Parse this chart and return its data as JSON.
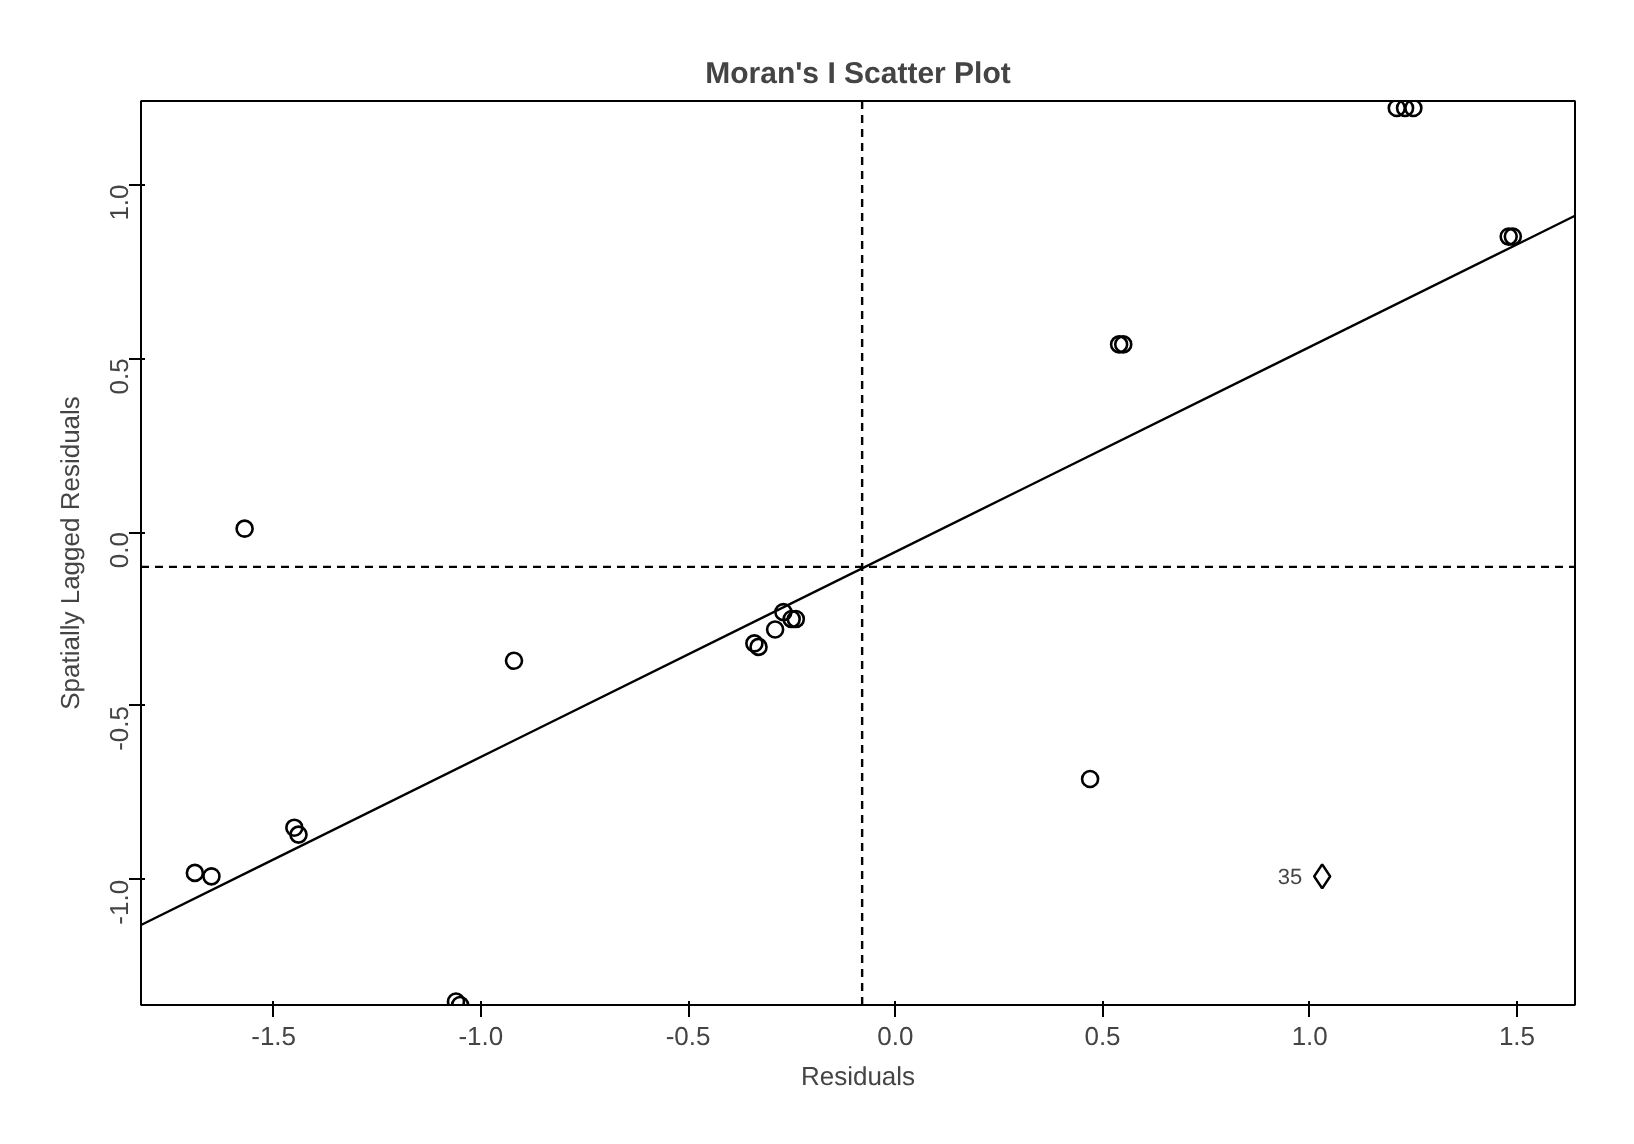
{
  "chart_data": {
    "type": "scatter",
    "title": "Moran's I Scatter Plot",
    "xlabel": "Residuals",
    "ylabel": "Spatially Lagged Residuals",
    "xlim": [
      -1.82,
      1.64
    ],
    "ylim": [
      -1.36,
      1.24
    ],
    "xticks": [
      -1.5,
      {
        "value": -1,
        "label": "-1.0"
      },
      -0.5,
      {
        "value": 0,
        "label": "0.0"
      },
      0.5,
      {
        "value": 1,
        "label": "1.0"
      },
      1.5
    ],
    "yticks": [
      {
        "value": -1,
        "label": "-1.0"
      },
      -0.5,
      {
        "value": 0,
        "label": "0.0"
      },
      0.5,
      {
        "value": 1,
        "label": "1.0"
      }
    ],
    "grid": false,
    "series": [
      {
        "marker": "circle",
        "color": "#000000",
        "x": [
          -1.57,
          -1.69,
          -1.65,
          -1.45,
          -1.44,
          -0.92,
          -1.06,
          -1.05,
          -0.34,
          -0.33,
          -0.29,
          -0.27,
          -0.25,
          -0.24,
          0.54,
          0.55,
          0.47,
          1.48,
          1.49,
          1.21,
          1.23,
          1.25
        ],
        "values": [
          0.01,
          -0.98,
          -0.99,
          -0.85,
          -0.87,
          -0.37,
          -1.35,
          -1.36,
          -0.32,
          -0.33,
          -0.28,
          -0.23,
          -0.25,
          -0.25,
          0.54,
          0.54,
          -0.71,
          0.85,
          0.85,
          1.22,
          1.22,
          1.22
        ]
      },
      {
        "type": "scatter",
        "marker": "diamond",
        "color": "#000000",
        "x": [
          1.03
        ],
        "values": [
          -0.99
        ]
      },
      {
        "type": "line",
        "line_style": "solid",
        "color": "#000000",
        "x": [
          -1.82,
          1.64
        ],
        "values": [
          -1.13,
          0.91
        ]
      }
    ],
    "ref_lines": [
      {
        "axis": "x",
        "value": -0.08,
        "line_style": "dashed"
      },
      {
        "axis": "y",
        "value": -0.1,
        "line_style": "dashed"
      }
    ],
    "annotations": [
      {
        "text": "35",
        "x": 1.03,
        "y": -0.99
      }
    ]
  }
}
